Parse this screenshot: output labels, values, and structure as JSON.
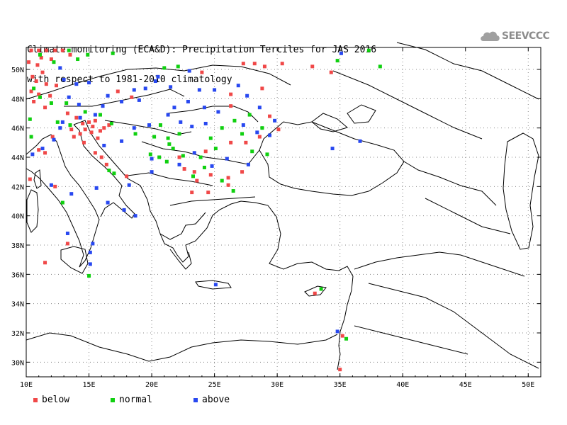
{
  "title": {
    "line1": "Climate monitoring (ECA&D): Precipitation Terciles for JAS 2016",
    "line2": "with respect to 1981-2010 climatology"
  },
  "logo": {
    "icon": "cloud-icon",
    "text": "SEEVCCC"
  },
  "axes": {
    "x_ticks": [
      "10E",
      "15E",
      "20E",
      "25E",
      "30E",
      "35E",
      "40E",
      "45E",
      "50E"
    ],
    "y_ticks": [
      "50N",
      "48N",
      "46N",
      "44N",
      "42N",
      "40N",
      "38N",
      "36N",
      "34N",
      "32N",
      "30N"
    ],
    "lon_range": [
      10,
      51
    ],
    "lat_range": [
      29,
      51.5
    ]
  },
  "colors": {
    "below": "#f04848",
    "normal": "#10d010",
    "above": "#2848f0"
  },
  "legend": [
    {
      "key": "below",
      "label": "below"
    },
    {
      "key": "normal",
      "label": "normal"
    },
    {
      "key": "above",
      "label": "above"
    }
  ],
  "stations": {
    "below": [
      [
        10.4,
        51.3
      ],
      [
        11.0,
        51.3
      ],
      [
        11.6,
        51.3
      ],
      [
        12.3,
        51.3
      ],
      [
        12.9,
        51.3
      ],
      [
        13.5,
        51.0
      ],
      [
        10.2,
        50.5
      ],
      [
        10.9,
        50.3
      ],
      [
        11.2,
        50.8
      ],
      [
        12.0,
        50.7
      ],
      [
        10.5,
        49.5
      ],
      [
        11.3,
        49.8
      ],
      [
        10.8,
        49.2
      ],
      [
        11.6,
        49.0
      ],
      [
        12.4,
        48.9
      ],
      [
        10.4,
        48.5
      ],
      [
        11.0,
        48.3
      ],
      [
        11.9,
        48.2
      ],
      [
        10.6,
        47.8
      ],
      [
        11.5,
        47.4
      ],
      [
        13.3,
        47.0
      ],
      [
        14.0,
        46.7
      ],
      [
        14.5,
        46.3
      ],
      [
        15.0,
        46.4
      ],
      [
        15.3,
        46.1
      ],
      [
        15.5,
        46.5
      ],
      [
        15.9,
        45.8
      ],
      [
        16.2,
        46.0
      ],
      [
        14.7,
        45.9
      ],
      [
        14.3,
        45.6
      ],
      [
        13.8,
        45.4
      ],
      [
        13.6,
        45.9
      ],
      [
        15.2,
        45.7
      ],
      [
        16.6,
        46.2
      ],
      [
        15.7,
        45.3
      ],
      [
        12.1,
        45.4
      ],
      [
        11.0,
        44.5
      ],
      [
        11.5,
        44.3
      ],
      [
        14.6,
        45.0
      ],
      [
        15.5,
        44.3
      ],
      [
        16.0,
        44.0
      ],
      [
        16.4,
        43.5
      ],
      [
        17.3,
        48.5
      ],
      [
        18.4,
        48.1
      ],
      [
        26.3,
        48.3
      ],
      [
        28.8,
        48.7
      ],
      [
        27.3,
        50.4
      ],
      [
        28.2,
        50.4
      ],
      [
        29.0,
        50.2
      ],
      [
        30.4,
        50.4
      ],
      [
        32.8,
        50.2
      ],
      [
        34.3,
        49.8
      ],
      [
        24.0,
        49.8
      ],
      [
        26.3,
        47.5
      ],
      [
        29.4,
        46.8
      ],
      [
        30.1,
        45.9
      ],
      [
        28.6,
        45.4
      ],
      [
        27.5,
        45.0
      ],
      [
        26.3,
        45.0
      ],
      [
        24.3,
        44.4
      ],
      [
        22.2,
        44.0
      ],
      [
        22.6,
        43.2
      ],
      [
        23.4,
        43.0
      ],
      [
        24.7,
        42.8
      ],
      [
        26.1,
        42.1
      ],
      [
        27.2,
        43.0
      ],
      [
        26.1,
        42.6
      ],
      [
        23.6,
        42.4
      ],
      [
        23.2,
        41.6
      ],
      [
        24.5,
        41.6
      ],
      [
        33.0,
        34.7
      ],
      [
        35.0,
        29.5
      ],
      [
        35.2,
        31.8
      ],
      [
        18.0,
        42.7
      ],
      [
        10.3,
        42.5
      ],
      [
        11.5,
        36.8
      ],
      [
        13.3,
        38.1
      ],
      [
        12.3,
        42.0
      ]
    ],
    "normal": [
      [
        11.1,
        51.0
      ],
      [
        12.2,
        50.5
      ],
      [
        13.4,
        51.3
      ],
      [
        14.1,
        50.7
      ],
      [
        14.9,
        51.0
      ],
      [
        16.9,
        51.1
      ],
      [
        21.0,
        50.1
      ],
      [
        22.1,
        50.2
      ],
      [
        10.6,
        48.7
      ],
      [
        11.1,
        48.1
      ],
      [
        12.0,
        47.7
      ],
      [
        13.2,
        47.7
      ],
      [
        14.7,
        47.1
      ],
      [
        15.9,
        46.9
      ],
      [
        10.3,
        46.6
      ],
      [
        10.4,
        45.4
      ],
      [
        12.5,
        46.4
      ],
      [
        13.5,
        46.2
      ],
      [
        16.8,
        46.3
      ],
      [
        18.7,
        45.6
      ],
      [
        20.2,
        45.4
      ],
      [
        20.7,
        46.2
      ],
      [
        21.3,
        45.3
      ],
      [
        22.2,
        45.6
      ],
      [
        19.9,
        44.2
      ],
      [
        20.6,
        44.0
      ],
      [
        21.2,
        43.7
      ],
      [
        21.7,
        44.6
      ],
      [
        22.5,
        44.1
      ],
      [
        23.9,
        44.0
      ],
      [
        24.7,
        45.3
      ],
      [
        25.6,
        46.0
      ],
      [
        26.6,
        46.5
      ],
      [
        27.2,
        45.6
      ],
      [
        27.8,
        46.9
      ],
      [
        28.8,
        46.0
      ],
      [
        28.0,
        44.4
      ],
      [
        29.2,
        44.2
      ],
      [
        24.2,
        43.3
      ],
      [
        25.1,
        44.6
      ],
      [
        23.3,
        42.7
      ],
      [
        25.6,
        42.4
      ],
      [
        26.5,
        41.7
      ],
      [
        16.6,
        43.1
      ],
      [
        17.0,
        42.9
      ],
      [
        12.9,
        40.9
      ],
      [
        21.4,
        44.9
      ],
      [
        33.5,
        35.0
      ],
      [
        37.3,
        51.3
      ],
      [
        38.2,
        50.2
      ],
      [
        34.8,
        50.6
      ],
      [
        35.5,
        31.6
      ],
      [
        15.0,
        35.9
      ]
    ],
    "above": [
      [
        12.7,
        50.1
      ],
      [
        13.0,
        49.3
      ],
      [
        14.0,
        49.0
      ],
      [
        15.0,
        49.1
      ],
      [
        16.5,
        48.2
      ],
      [
        17.6,
        47.8
      ],
      [
        18.6,
        48.6
      ],
      [
        19.5,
        48.7
      ],
      [
        20.3,
        49.2
      ],
      [
        21.5,
        48.8
      ],
      [
        23.8,
        48.6
      ],
      [
        25.0,
        48.6
      ],
      [
        26.9,
        48.9
      ],
      [
        27.6,
        48.2
      ],
      [
        28.6,
        47.4
      ],
      [
        29.8,
        46.5
      ],
      [
        25.3,
        47.1
      ],
      [
        24.3,
        46.3
      ],
      [
        23.2,
        46.1
      ],
      [
        22.3,
        46.4
      ],
      [
        21.3,
        46.9
      ],
      [
        19.8,
        46.2
      ],
      [
        18.6,
        46.0
      ],
      [
        17.6,
        45.1
      ],
      [
        16.2,
        44.8
      ],
      [
        20.0,
        43.9
      ],
      [
        22.2,
        43.5
      ],
      [
        23.4,
        44.3
      ],
      [
        24.8,
        43.4
      ],
      [
        26.0,
        43.9
      ],
      [
        27.7,
        43.5
      ],
      [
        28.4,
        45.7
      ],
      [
        20.0,
        43.0
      ],
      [
        18.2,
        42.1
      ],
      [
        16.5,
        40.9
      ],
      [
        15.6,
        41.9
      ],
      [
        13.6,
        41.5
      ],
      [
        12.0,
        42.1
      ],
      [
        10.5,
        44.2
      ],
      [
        11.3,
        44.6
      ],
      [
        12.2,
        45.2
      ],
      [
        12.7,
        46.0
      ],
      [
        13.4,
        48.1
      ],
      [
        14.3,
        46.7
      ],
      [
        15.5,
        46.9
      ],
      [
        16.1,
        47.5
      ],
      [
        19.0,
        47.9
      ],
      [
        21.8,
        47.4
      ],
      [
        22.9,
        47.8
      ],
      [
        24.2,
        47.4
      ],
      [
        27.3,
        46.2
      ],
      [
        29.4,
        45.5
      ],
      [
        20.5,
        49.5
      ],
      [
        23.0,
        49.9
      ],
      [
        34.4,
        44.6
      ],
      [
        36.6,
        45.1
      ],
      [
        35.1,
        51.1
      ],
      [
        17.8,
        40.4
      ],
      [
        18.7,
        40.0
      ],
      [
        15.1,
        37.5
      ],
      [
        15.3,
        38.1
      ],
      [
        13.3,
        38.8
      ],
      [
        15.1,
        36.7
      ],
      [
        25.1,
        35.3
      ],
      [
        34.8,
        32.1
      ],
      [
        12.9,
        46.4
      ],
      [
        14.2,
        47.6
      ]
    ]
  }
}
